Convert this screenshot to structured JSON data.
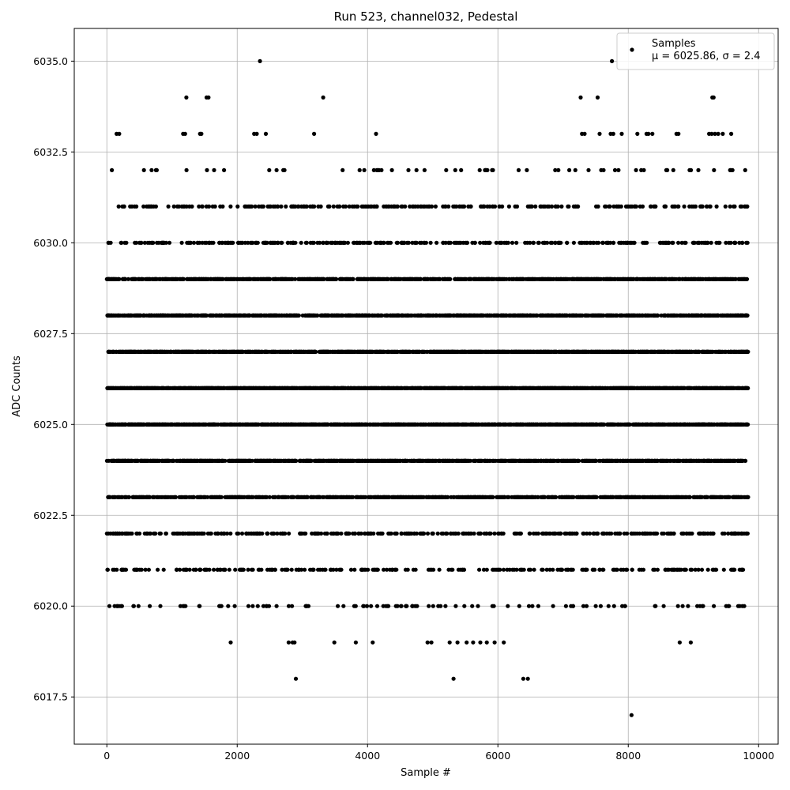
{
  "chart_data": {
    "type": "scatter",
    "title": "Run 523, channel032, Pedestal",
    "xlabel": "Sample #",
    "ylabel": "ADC Counts",
    "xlim": [
      -500,
      10300
    ],
    "ylim": [
      6016.2,
      6035.9
    ],
    "xticks": [
      0,
      2000,
      4000,
      6000,
      8000,
      10000
    ],
    "xtick_labels": [
      "0",
      "2000",
      "4000",
      "6000",
      "8000",
      "10000"
    ],
    "yticks": [
      6017.5,
      6020.0,
      6022.5,
      6025.0,
      6027.5,
      6030.0,
      6032.5,
      6035.0
    ],
    "ytick_labels": [
      "6017.5",
      "6020.0",
      "6022.5",
      "6025.0",
      "6027.5",
      "6030.0",
      "6032.5",
      "6035.0"
    ],
    "grid": true,
    "legend": {
      "position": "top-right",
      "entries": [
        "Samples"
      ],
      "stats": "μ = 6025.86, σ = 2.4"
    },
    "marker_color": "#000000",
    "n_samples": 9840,
    "mean": 6025.86,
    "sigma": 2.4,
    "series": [
      {
        "name": "Samples",
        "points": [
          [
            2350,
            6035
          ],
          [
            7750,
            6035
          ],
          [
            8050,
            6017
          ],
          [
            1220,
            6034
          ],
          [
            1530,
            6034
          ],
          [
            1560,
            6034
          ],
          [
            3320,
            6034
          ],
          [
            7270,
            6034
          ],
          [
            7530,
            6034
          ],
          [
            9290,
            6034
          ],
          [
            9310,
            6034
          ],
          [
            150,
            6033
          ],
          [
            190,
            6033
          ],
          [
            1170,
            6033
          ],
          [
            1200,
            6033
          ],
          [
            1430,
            6033
          ],
          [
            1450,
            6033
          ],
          [
            2260,
            6033
          ],
          [
            2300,
            6033
          ],
          [
            2440,
            6033
          ],
          [
            3180,
            6033
          ],
          [
            4130,
            6033
          ],
          [
            7290,
            6033
          ],
          [
            7330,
            6033
          ],
          [
            7560,
            6033
          ],
          [
            7730,
            6033
          ],
          [
            7770,
            6033
          ],
          [
            7900,
            6033
          ],
          [
            8140,
            6033
          ],
          [
            8280,
            6033
          ],
          [
            8310,
            6033
          ],
          [
            8370,
            6033
          ],
          [
            8740,
            6033
          ],
          [
            8770,
            6033
          ],
          [
            9240,
            6033
          ],
          [
            9280,
            6033
          ],
          [
            9330,
            6033
          ],
          [
            9380,
            6033
          ],
          [
            9450,
            6033
          ],
          [
            9580,
            6033
          ],
          [
            2900,
            6018
          ],
          [
            5320,
            6018
          ],
          [
            6390,
            6018
          ],
          [
            6460,
            6018
          ],
          [
            1900,
            6019
          ],
          [
            2790,
            6019
          ],
          [
            2850,
            6019
          ],
          [
            2880,
            6019
          ],
          [
            3490,
            6019
          ],
          [
            3820,
            6019
          ],
          [
            4080,
            6019
          ],
          [
            4920,
            6019
          ],
          [
            4980,
            6019
          ],
          [
            5260,
            6019
          ],
          [
            5380,
            6019
          ],
          [
            5520,
            6019
          ],
          [
            5620,
            6019
          ],
          [
            5730,
            6019
          ],
          [
            5830,
            6019
          ],
          [
            5950,
            6019
          ],
          [
            6090,
            6019
          ],
          [
            8790,
            6019
          ],
          [
            8960,
            6019
          ]
        ],
        "band_counts": [
          [
            6032,
            60
          ],
          [
            6031,
            260
          ],
          [
            6030,
            330
          ],
          [
            6029,
            1050
          ],
          [
            6028,
            1350
          ],
          [
            6027,
            1600
          ],
          [
            6026,
            1650
          ],
          [
            6025,
            1500
          ],
          [
            6024,
            1200
          ],
          [
            6023,
            900
          ],
          [
            6022,
            380
          ],
          [
            6021,
            250
          ],
          [
            6020,
            110
          ]
        ]
      }
    ]
  }
}
